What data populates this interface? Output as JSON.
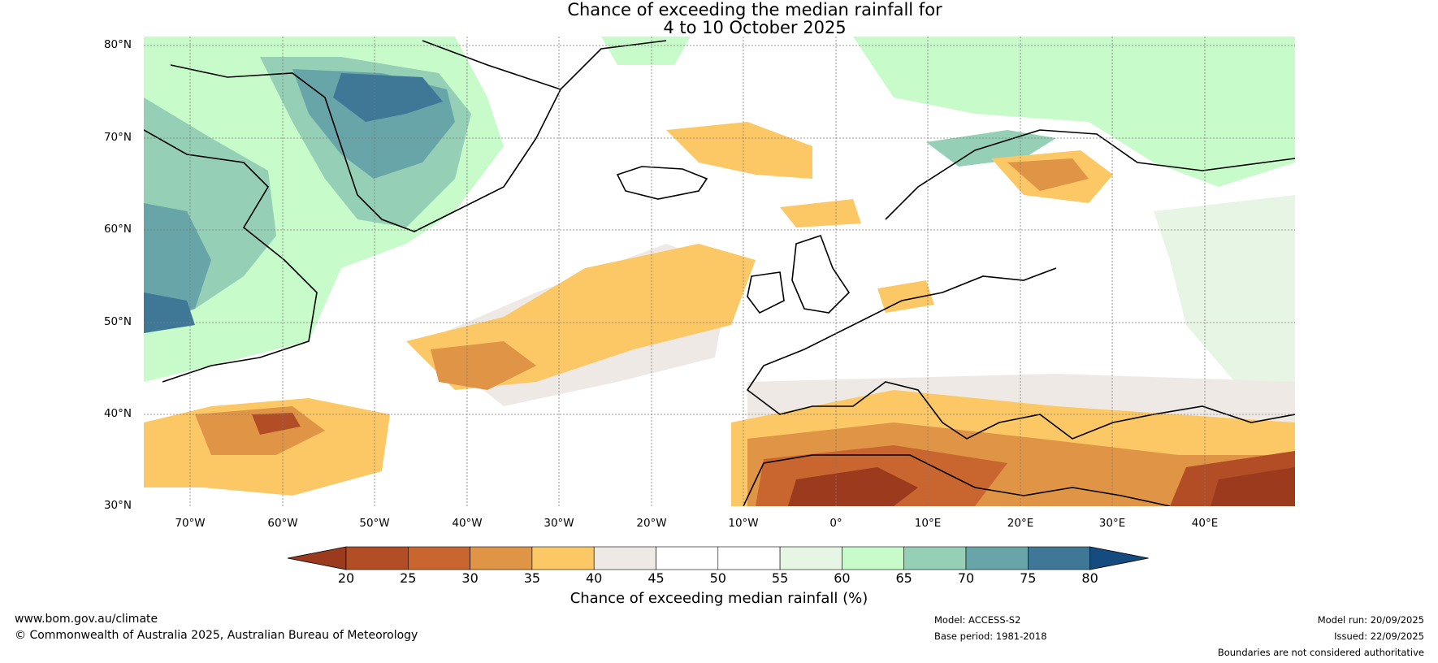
{
  "title_line1": "Chance of exceeding the median rainfall for",
  "title_line2": "4 to 10 October 2025",
  "lat_labels": [
    "80°N",
    "70°N",
    "60°N",
    "50°N",
    "40°N",
    "30°N"
  ],
  "lon_labels": [
    "70°W",
    "60°W",
    "50°W",
    "40°W",
    "30°W",
    "20°W",
    "10°W",
    "0°",
    "10°E",
    "20°E",
    "30°E",
    "40°E"
  ],
  "colorbar": {
    "ticks": [
      "20",
      "25",
      "30",
      "35",
      "40",
      "45",
      "50",
      "55",
      "60",
      "65",
      "70",
      "75",
      "80"
    ],
    "colors": [
      "#9c3a1d",
      "#b24d25",
      "#c9652f",
      "#e09445",
      "#fcc765",
      "#efe9e5",
      "#ffffff",
      "#ffffff",
      "#e7f5e5",
      "#c7fbc9",
      "#95d0b6",
      "#67a5a9",
      "#3f7897",
      "#154c80"
    ],
    "title": "Chance of exceeding median rainfall (%)"
  },
  "footer": {
    "url": "www.bom.gov.au/climate",
    "copyright": "© Commonwealth of Australia 2025, Australian Bureau of Meteorology",
    "model": "Model: ACCESS-S2",
    "base_period": "Base period: 1981-2018",
    "model_run": "Model run: 20/09/2025",
    "issued": "Issued: 22/09/2025",
    "disclaimer": "Boundaries are not considered authoritative"
  }
}
